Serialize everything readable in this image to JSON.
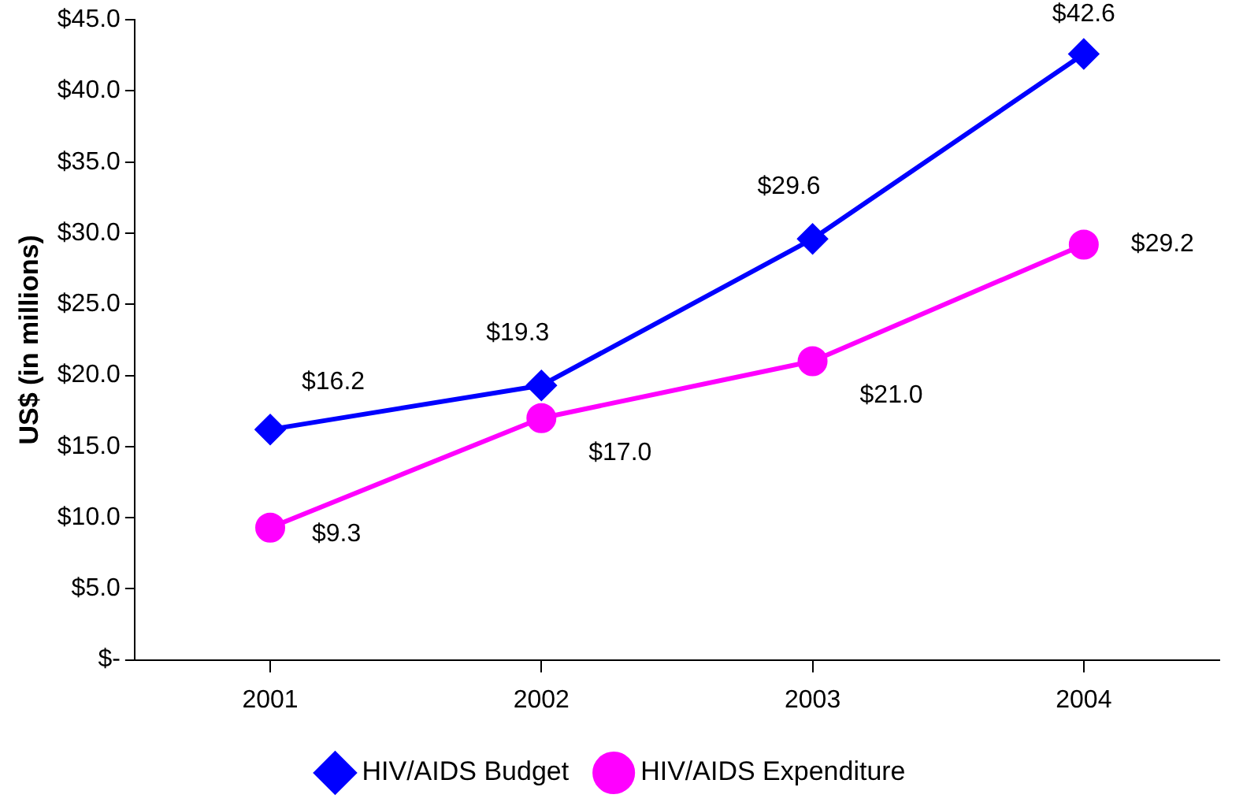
{
  "chart_data": {
    "type": "line",
    "ylabel": "US$ (in millions)",
    "categories": [
      "2001",
      "2002",
      "2003",
      "2004"
    ],
    "series": [
      {
        "name": "HIV/AIDS Budget",
        "color": "#0000ff",
        "marker": "diamond",
        "values": [
          16.2,
          19.3,
          29.6,
          42.6
        ],
        "value_labels": [
          "$16.2",
          "$19.3",
          "$29.6",
          "$42.6"
        ]
      },
      {
        "name": "HIV/AIDS Expenditure",
        "color": "#ff00ff",
        "marker": "circle",
        "values": [
          9.3,
          17.0,
          21.0,
          29.2
        ],
        "value_labels": [
          "$9.3",
          "$17.0",
          "$21.0",
          "$29.2"
        ]
      }
    ],
    "ylim": [
      0,
      45
    ],
    "yticks": [
      {
        "value": 0,
        "label": "$-"
      },
      {
        "value": 5,
        "label": "$5.0"
      },
      {
        "value": 10,
        "label": "$10.0"
      },
      {
        "value": 15,
        "label": "$15.0"
      },
      {
        "value": 20,
        "label": "$20.0"
      },
      {
        "value": 25,
        "label": "$25.0"
      },
      {
        "value": 30,
        "label": "$30.0"
      },
      {
        "value": 35,
        "label": "$35.0"
      },
      {
        "value": 40,
        "label": "$40.0"
      },
      {
        "value": 45,
        "label": "$45.0"
      }
    ],
    "grid": false,
    "legend": "bottom",
    "line_style": "solid"
  }
}
